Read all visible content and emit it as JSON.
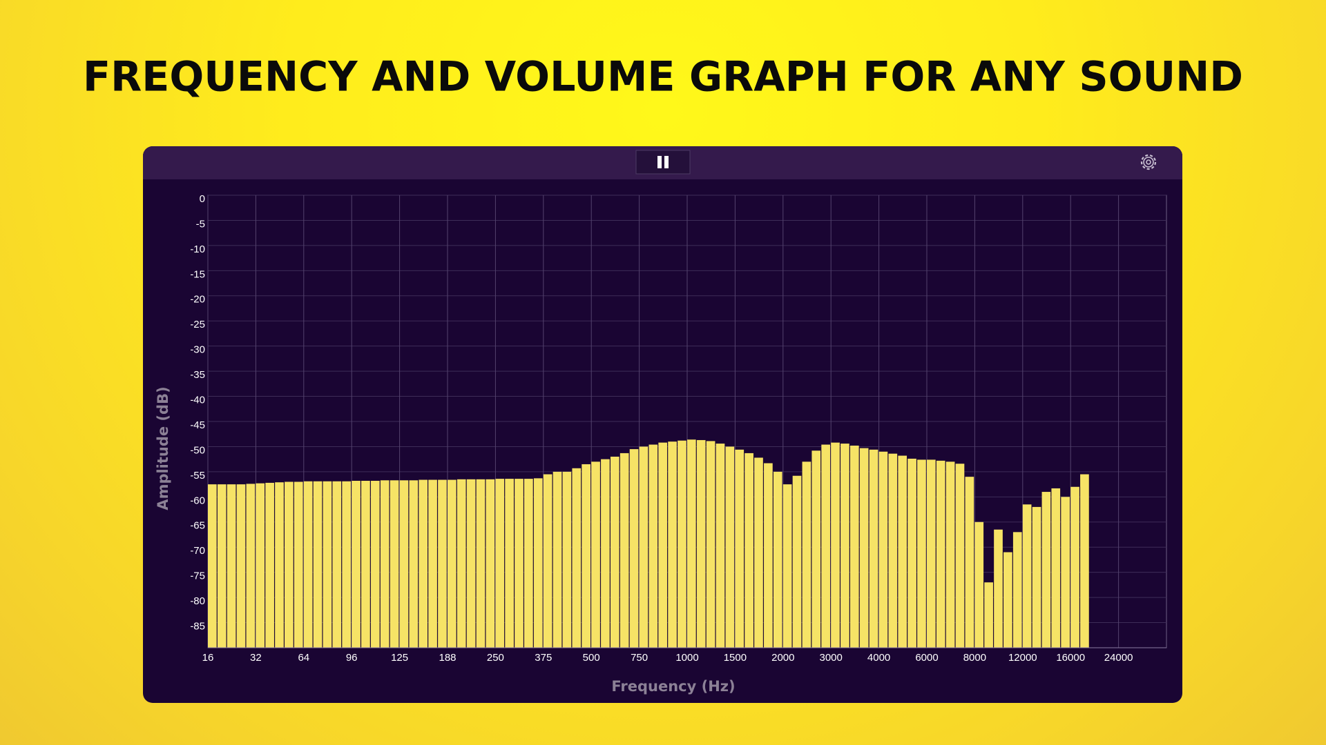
{
  "header": {
    "title": "FREQUENCY AND VOLUME GRAPH FOR ANY SOUND"
  },
  "chart_data": {
    "type": "bar",
    "x_label": "Frequency (Hz)",
    "y_label": "Amplitude (dB)",
    "color": "#f6e366",
    "grid": true,
    "xlim": [
      0,
      100
    ],
    "xticks": [
      {
        "value": 0,
        "label": "16"
      },
      {
        "value": 5,
        "label": "32"
      },
      {
        "value": 10,
        "label": "64"
      },
      {
        "value": 15,
        "label": "96"
      },
      {
        "value": 20,
        "label": "125"
      },
      {
        "value": 25,
        "label": "188"
      },
      {
        "value": 30,
        "label": "250"
      },
      {
        "value": 35,
        "label": "375"
      },
      {
        "value": 40,
        "label": "500"
      },
      {
        "value": 45,
        "label": "750"
      },
      {
        "value": 50,
        "label": "1000"
      },
      {
        "value": 55,
        "label": "1500"
      },
      {
        "value": 60,
        "label": "2000"
      },
      {
        "value": 65,
        "label": "3000"
      },
      {
        "value": 70,
        "label": "4000"
      },
      {
        "value": 75,
        "label": "6000"
      },
      {
        "value": 80,
        "label": "8000"
      },
      {
        "value": 85,
        "label": "12000"
      },
      {
        "value": 90,
        "label": "16000"
      },
      {
        "value": 95,
        "label": "24000"
      }
    ],
    "ylim": [
      -90,
      0
    ],
    "yticks": [
      0,
      -5,
      -10,
      -15,
      -20,
      -25,
      -30,
      -35,
      -40,
      -45,
      -50,
      -55,
      -60,
      -65,
      -70,
      -75,
      -80,
      -85
    ],
    "categories": [
      null,
      null,
      null,
      null,
      null,
      null,
      null,
      null,
      null,
      null,
      null,
      null,
      null,
      null,
      null,
      null,
      null,
      null,
      null,
      null,
      null,
      null,
      null,
      null,
      null,
      null,
      null,
      null,
      null,
      null,
      null,
      null,
      null,
      null,
      null,
      null,
      null,
      null,
      null,
      null,
      null,
      null,
      null,
      null,
      null,
      null,
      null,
      null,
      null,
      null,
      null,
      null,
      null,
      null,
      null,
      null,
      null,
      null,
      null,
      null,
      null,
      null,
      null,
      null,
      null,
      null,
      null,
      null,
      null,
      null,
      null,
      null,
      null,
      null,
      null,
      null,
      null,
      null,
      null,
      null,
      null,
      null,
      null,
      null,
      null,
      null,
      null,
      null,
      null,
      null,
      null,
      null,
      null,
      null,
      null,
      null,
      null,
      null,
      null,
      null
    ],
    "values": [
      -57.5,
      -57.5,
      -57.5,
      -57.5,
      -57.4,
      -57.3,
      -57.2,
      -57.1,
      -57,
      -57,
      -56.9,
      -56.9,
      -56.9,
      -56.9,
      -56.9,
      -56.8,
      -56.8,
      -56.8,
      -56.7,
      -56.7,
      -56.7,
      -56.7,
      -56.6,
      -56.6,
      -56.6,
      -56.6,
      -56.5,
      -56.5,
      -56.5,
      -56.5,
      -56.4,
      -56.4,
      -56.4,
      -56.4,
      -56.3,
      -55.5,
      -55,
      -55,
      -54.3,
      -53.5,
      -53,
      -52.5,
      -52,
      -51.3,
      -50.5,
      -50,
      -49.6,
      -49.2,
      -49,
      -48.8,
      -48.6,
      -48.7,
      -48.9,
      -49.4,
      -50,
      -50.6,
      -51.3,
      -52.2,
      -53.3,
      -55,
      -57.5,
      -55.8,
      -53,
      -50.8,
      -49.6,
      -49.2,
      -49.4,
      -49.8,
      -50.3,
      -50.6,
      -51,
      -51.4,
      -51.8,
      -52.4,
      -52.6,
      -52.6,
      -52.8,
      -53,
      -53.4,
      -56,
      -65,
      -77,
      -66.5,
      -71,
      -67,
      -61.5,
      -62,
      -59,
      -58.3,
      -60,
      -58,
      -55.5,
      null,
      null,
      null,
      null,
      null,
      null,
      null,
      null
    ]
  }
}
